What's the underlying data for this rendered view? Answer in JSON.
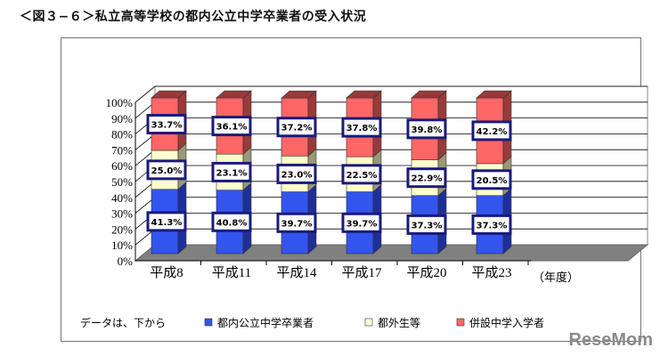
{
  "title": "＜図３−６＞私立高等学校の都内公立中学卒業者の受入状況",
  "watermark": "ReseMom",
  "chart_data": {
    "type": "bar",
    "stacked": true,
    "three_d": true,
    "categories": [
      "平成8",
      "平成11",
      "平成14",
      "平成17",
      "平成20",
      "平成23"
    ],
    "x_unit_label": "（年度）",
    "ylim": [
      0,
      100
    ],
    "y_ticks": [
      "0%",
      "10%",
      "20%",
      "30%",
      "40%",
      "50%",
      "60%",
      "70%",
      "80%",
      "90%",
      "100%"
    ],
    "grid": true,
    "legend_prefix": "データは、下から",
    "legend_position": "bottom",
    "series": [
      {
        "name": "都内公立中学卒業者",
        "color": "#3355ee",
        "side": "#1f2f99",
        "values": [
          41.3,
          40.8,
          39.7,
          39.7,
          37.3,
          37.3
        ],
        "labels": [
          "41.3%",
          "40.8%",
          "39.7%",
          "39.7%",
          "37.3%",
          "37.3%"
        ]
      },
      {
        "name": "都外生等",
        "color": "#ffffcc",
        "side": "#999977",
        "values": [
          25.0,
          23.1,
          23.0,
          22.5,
          22.9,
          20.5
        ],
        "labels": [
          "25.0%",
          "23.1%",
          "23.0%",
          "22.5%",
          "22.9%",
          "20.5%"
        ]
      },
      {
        "name": "併設中学入学者",
        "color": "#ff6666",
        "side": "#993a3a",
        "values": [
          33.7,
          36.1,
          37.2,
          37.8,
          39.8,
          42.2
        ],
        "labels": [
          "33.7%",
          "36.1%",
          "37.2%",
          "37.8%",
          "39.8%",
          "42.2%"
        ]
      }
    ]
  }
}
